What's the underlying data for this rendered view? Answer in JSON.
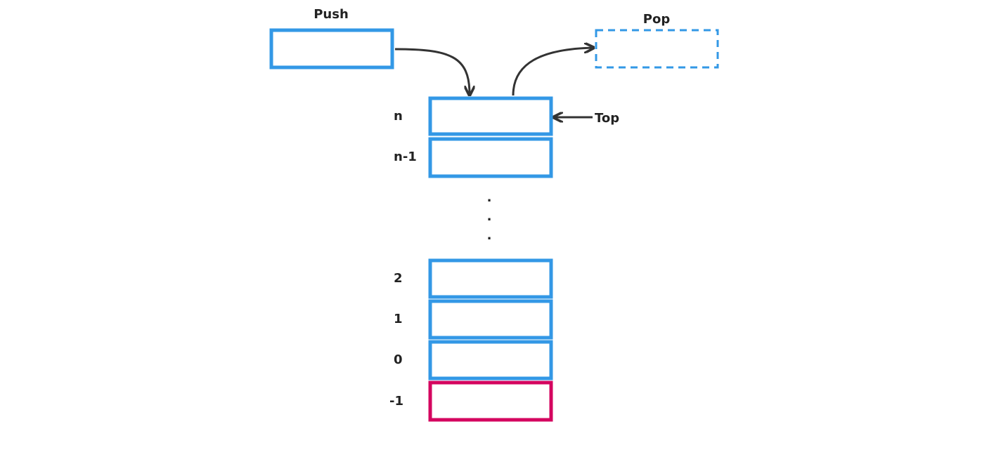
{
  "colors": {
    "box": "#3398e6",
    "sentinel": "#d4055f",
    "arrow": "#333333",
    "text": "#222222"
  },
  "push": {
    "label": "Push"
  },
  "pop": {
    "label": "Pop"
  },
  "top": {
    "label": "Top"
  },
  "stack": {
    "upper_slots": [
      {
        "index": "n"
      },
      {
        "index": "n-1"
      }
    ],
    "ellipsis": [
      ".",
      ".",
      "."
    ],
    "lower_slots": [
      {
        "index": "2"
      },
      {
        "index": "1"
      },
      {
        "index": "0"
      }
    ],
    "sentinel_slot": {
      "index": "-1"
    }
  }
}
